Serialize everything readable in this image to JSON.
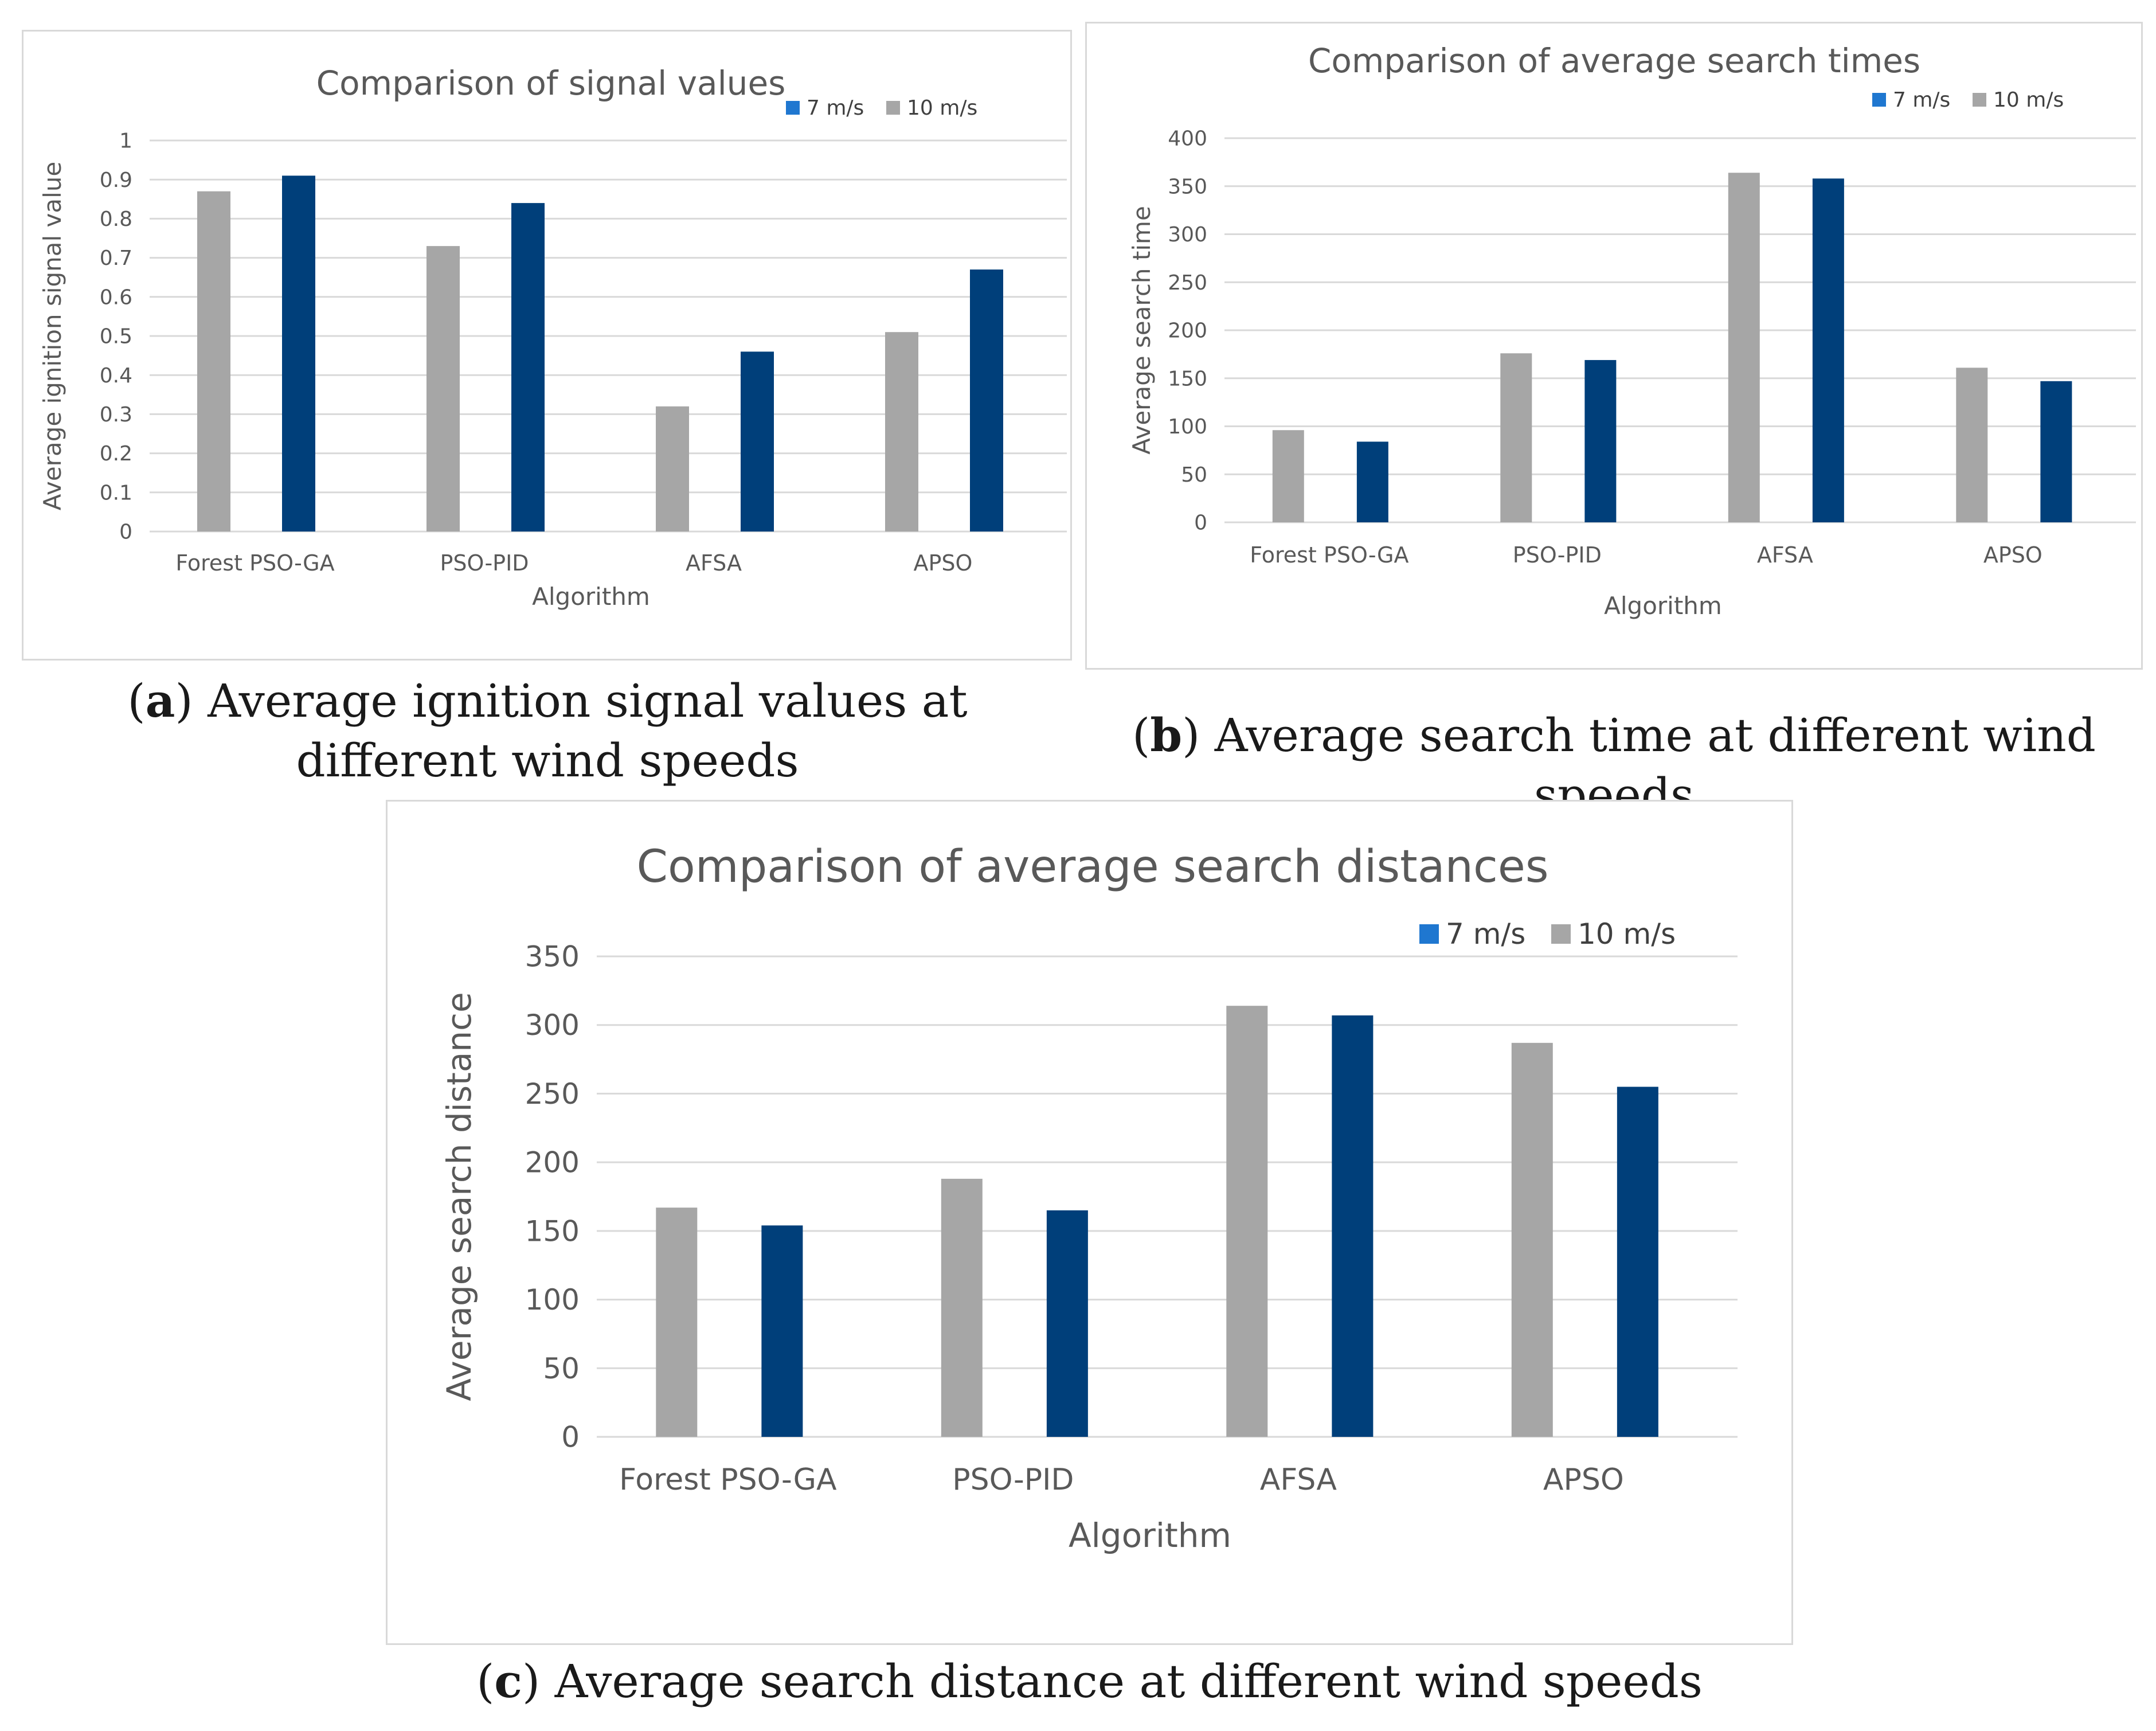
{
  "chart_data": [
    {
      "type": "bar",
      "title": "Comparison of signal values",
      "xlabel": "Algorithm",
      "ylabel": "Average ignition signal value",
      "categories": [
        "Forest PSO-GA",
        "PSO-PID",
        "AFSA",
        "APSO"
      ],
      "legend_order": [
        "7 m/s",
        "10 m/s"
      ],
      "series": [
        {
          "name": "10 m/s",
          "values": [
            0.87,
            0.73,
            0.32,
            0.51
          ],
          "color": "#a6a6a6"
        },
        {
          "name": "7 m/s",
          "values": [
            0.91,
            0.84,
            0.46,
            0.67
          ],
          "color": "#003f7a"
        }
      ],
      "legend_colors": {
        "7 m/s": "#1f77d0",
        "10 m/s": "#a6a6a6"
      },
      "ylim": [
        0,
        1
      ],
      "yticks": [
        "0",
        "0.1",
        "0.2",
        "0.3",
        "0.4",
        "0.5",
        "0.6",
        "0.7",
        "0.8",
        "0.9",
        "1"
      ],
      "grid": true,
      "legend_position": "top-right"
    },
    {
      "type": "bar",
      "title": "Comparison of average search times",
      "xlabel": "Algorithm",
      "ylabel": "Average search time",
      "categories": [
        "Forest PSO-GA",
        "PSO-PID",
        "AFSA",
        "APSO"
      ],
      "legend_order": [
        "7 m/s",
        "10 m/s"
      ],
      "series": [
        {
          "name": "10 m/s",
          "values": [
            96,
            176,
            364,
            161
          ],
          "color": "#a6a6a6"
        },
        {
          "name": "7 m/s",
          "values": [
            84,
            169,
            358,
            147
          ],
          "color": "#003f7a"
        }
      ],
      "legend_colors": {
        "7 m/s": "#1f77d0",
        "10 m/s": "#a6a6a6"
      },
      "ylim": [
        0,
        400
      ],
      "yticks": [
        "0",
        "50",
        "100",
        "150",
        "200",
        "250",
        "300",
        "350",
        "400"
      ],
      "grid": true,
      "legend_position": "top-right"
    },
    {
      "type": "bar",
      "title": "Comparison of average search distances",
      "xlabel": "Algorithm",
      "ylabel": "Average search distance",
      "categories": [
        "Forest PSO-GA",
        "PSO-PID",
        "AFSA",
        "APSO"
      ],
      "legend_order": [
        "7 m/s",
        "10 m/s"
      ],
      "series": [
        {
          "name": "10 m/s",
          "values": [
            167,
            188,
            314,
            287
          ],
          "color": "#a6a6a6"
        },
        {
          "name": "7 m/s",
          "values": [
            154,
            165,
            307,
            255
          ],
          "color": "#003f7a"
        }
      ],
      "legend_colors": {
        "7 m/s": "#1f77d0",
        "10 m/s": "#a6a6a6"
      },
      "ylim": [
        0,
        350
      ],
      "yticks": [
        "0",
        "50",
        "100",
        "150",
        "200",
        "250",
        "300",
        "350"
      ],
      "grid": true,
      "legend_position": "top-right"
    }
  ],
  "captions": [
    {
      "letter": "a",
      "text": ") Average ignition signal values at different wind speeds"
    },
    {
      "letter": "b",
      "text": ") Average search time at different wind speeds"
    },
    {
      "letter": "c",
      "text": ") Average search distance at different wind speeds"
    }
  ]
}
